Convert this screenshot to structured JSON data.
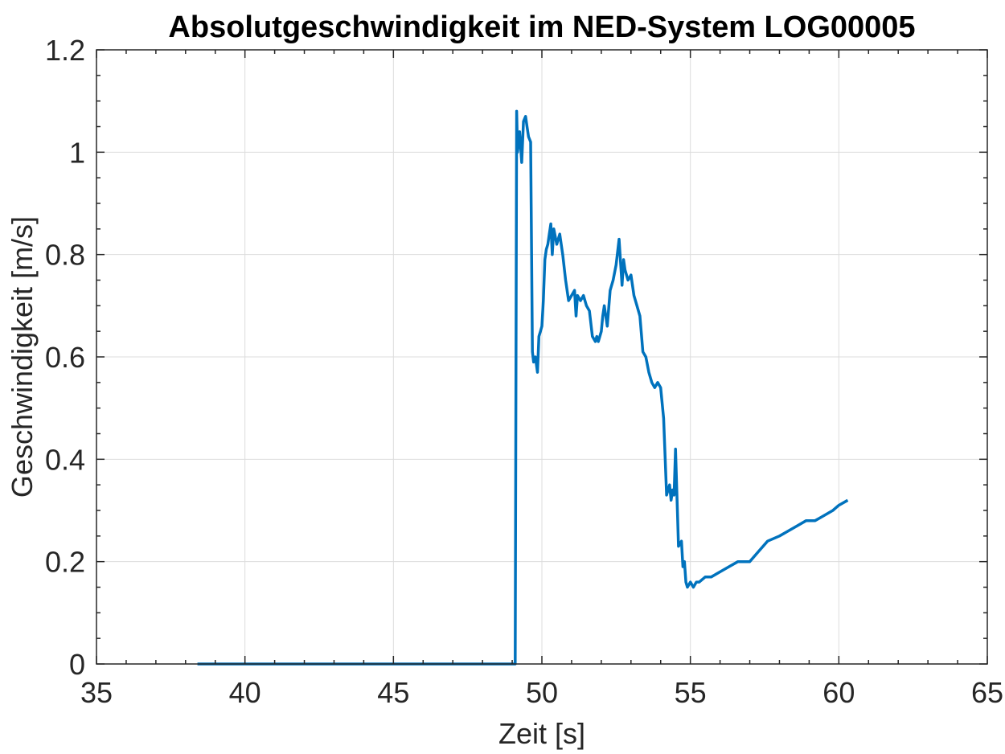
{
  "chart_data": {
    "type": "line",
    "title": "Absolutgeschwindigkeit im NED-System LOG00005",
    "xlabel": "Zeit [s]",
    "ylabel": "Geschwindigkeit [m/s]",
    "xlim": [
      35,
      65
    ],
    "ylim": [
      0,
      1.2
    ],
    "xticks": [
      35,
      40,
      45,
      50,
      55,
      60,
      65
    ],
    "yticks": [
      0,
      0.2,
      0.4,
      0.6,
      0.8,
      1,
      1.2
    ],
    "xtick_labels": [
      "35",
      "40",
      "45",
      "50",
      "55",
      "60",
      "65"
    ],
    "ytick_labels": [
      "0",
      "0.2",
      "0.4",
      "0.6",
      "0.8",
      "1",
      "1.2"
    ],
    "grid": true,
    "line_color": "#0072BD",
    "series": [
      {
        "x": [
          38.4,
          49.1,
          49.15,
          49.18,
          49.25,
          49.32,
          49.38,
          49.45,
          49.5,
          49.55,
          49.62,
          49.68,
          49.72,
          49.78,
          49.85,
          49.9,
          49.95,
          50.0,
          50.05,
          50.1,
          50.15,
          50.2,
          50.25,
          50.3,
          50.35,
          50.4,
          50.5,
          50.6,
          50.7,
          50.8,
          50.9,
          51.0,
          51.1,
          51.15,
          51.2,
          51.3,
          51.4,
          51.5,
          51.6,
          51.7,
          51.8,
          51.85,
          51.9,
          52.0,
          52.05,
          52.1,
          52.2,
          52.3,
          52.4,
          52.5,
          52.6,
          52.7,
          52.75,
          52.8,
          52.9,
          53.0,
          53.1,
          53.2,
          53.3,
          53.4,
          53.5,
          53.6,
          53.7,
          53.8,
          53.9,
          54.0,
          54.1,
          54.2,
          54.3,
          54.35,
          54.4,
          54.45,
          54.5,
          54.6,
          54.7,
          54.75,
          54.8,
          54.85,
          54.9,
          55.0,
          55.1,
          55.2,
          55.3,
          55.5,
          55.7,
          56.0,
          56.3,
          56.6,
          57.0,
          57.3,
          57.6,
          58.0,
          58.3,
          58.6,
          58.9,
          59.2,
          59.5,
          59.8,
          60.0,
          60.3
        ],
        "y": [
          0.0,
          0.0,
          1.08,
          1.0,
          1.04,
          0.98,
          1.06,
          1.07,
          1.05,
          1.03,
          1.02,
          0.61,
          0.59,
          0.6,
          0.57,
          0.64,
          0.65,
          0.66,
          0.71,
          0.79,
          0.81,
          0.82,
          0.84,
          0.86,
          0.8,
          0.85,
          0.82,
          0.84,
          0.8,
          0.75,
          0.71,
          0.72,
          0.73,
          0.68,
          0.72,
          0.71,
          0.72,
          0.7,
          0.69,
          0.64,
          0.63,
          0.64,
          0.63,
          0.65,
          0.68,
          0.7,
          0.66,
          0.73,
          0.75,
          0.78,
          0.83,
          0.74,
          0.79,
          0.77,
          0.75,
          0.76,
          0.72,
          0.7,
          0.68,
          0.61,
          0.6,
          0.57,
          0.55,
          0.54,
          0.55,
          0.54,
          0.48,
          0.33,
          0.35,
          0.32,
          0.34,
          0.33,
          0.42,
          0.23,
          0.24,
          0.19,
          0.2,
          0.16,
          0.15,
          0.16,
          0.15,
          0.16,
          0.16,
          0.17,
          0.17,
          0.18,
          0.19,
          0.2,
          0.2,
          0.22,
          0.24,
          0.25,
          0.26,
          0.27,
          0.28,
          0.28,
          0.29,
          0.3,
          0.31,
          0.32
        ]
      }
    ]
  }
}
